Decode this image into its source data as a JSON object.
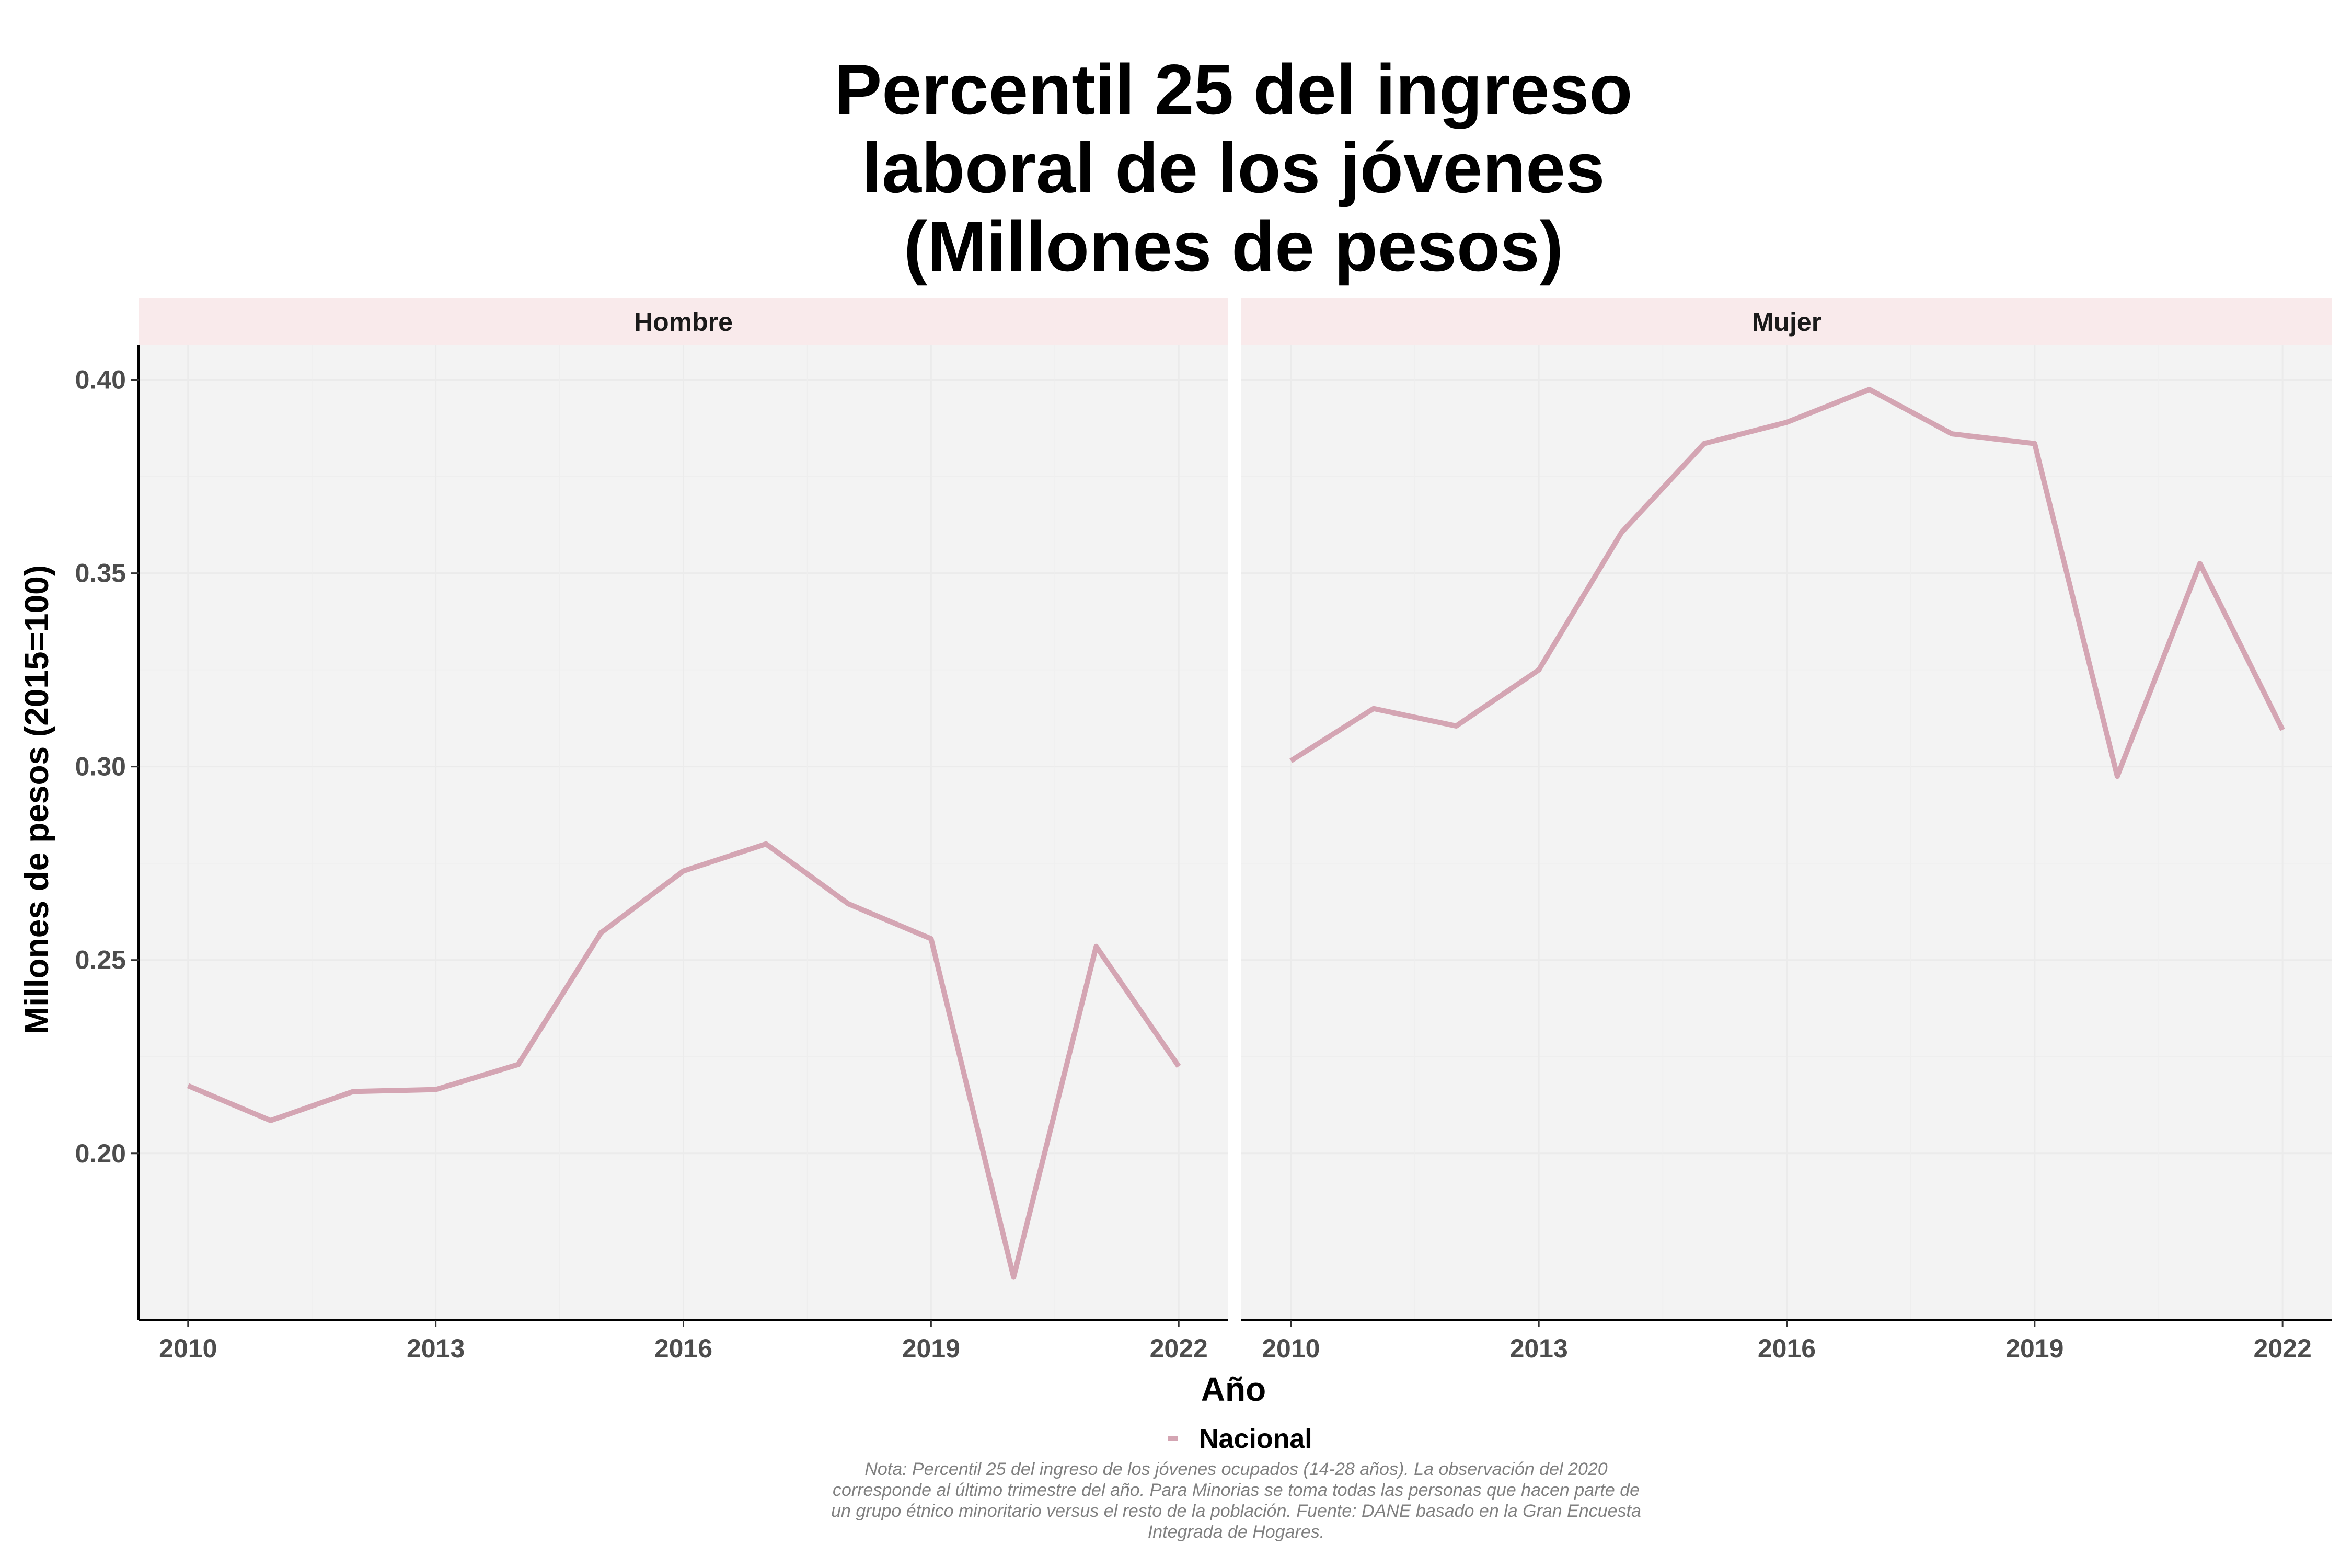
{
  "chart_data": {
    "type": "line",
    "title_lines": [
      "Percentil 25 del ingreso",
      "laboral de los jóvenes",
      "(Millones de pesos)"
    ],
    "xlabel": "Año",
    "ylabel": "Millones de pesos (2015=100)",
    "x": [
      2010,
      2011,
      2012,
      2013,
      2014,
      2015,
      2016,
      2017,
      2018,
      2019,
      2020,
      2021,
      2022
    ],
    "x_ticks": [
      2010,
      2013,
      2016,
      2019,
      2022
    ],
    "x_tick_labels": [
      "2010",
      "2013",
      "2016",
      "2019",
      "2022"
    ],
    "xlim": [
      2009.4,
      2022.6
    ],
    "y_ticks": [
      0.2,
      0.25,
      0.3,
      0.35,
      0.4
    ],
    "y_tick_labels": [
      "0.20",
      "0.25",
      "0.30",
      "0.35",
      "0.40"
    ],
    "ylim": [
      0.157,
      0.409
    ],
    "grid": true,
    "line_color": "#d4a5b3",
    "panel_color": "#f3f3f3",
    "strip_color": "#f9eaeb",
    "legend": {
      "position": "bottom",
      "entries": [
        {
          "label": "Nacional",
          "color": "#d4a5b3"
        }
      ]
    },
    "panels": [
      {
        "name": "Hombre",
        "series": [
          {
            "name": "Nacional",
            "values": [
              0.2175,
              0.2085,
              0.216,
              0.2165,
              0.223,
              0.257,
              0.273,
              0.28,
              0.2645,
              0.2555,
              0.168,
              0.2535,
              0.2225
            ]
          }
        ]
      },
      {
        "name": "Mujer",
        "series": [
          {
            "name": "Nacional",
            "values": [
              0.3015,
              0.315,
              0.3105,
              0.325,
              0.3605,
              0.3835,
              0.389,
              0.3975,
              0.386,
              0.3835,
              0.2975,
              0.3525,
              0.3095
            ]
          }
        ]
      }
    ]
  },
  "note_lines": [
    "Nota: Percentil 25 del ingreso de los jóvenes ocupados (14-28 años). La observación del 2020",
    "corresponde al último trimestre del año. Para Minorias se toma todas las personas que hacen parte de",
    "un grupo étnico minoritario versus el resto de la población. Fuente: DANE basado en la Gran Encuesta",
    "Integrada de Hogares."
  ]
}
